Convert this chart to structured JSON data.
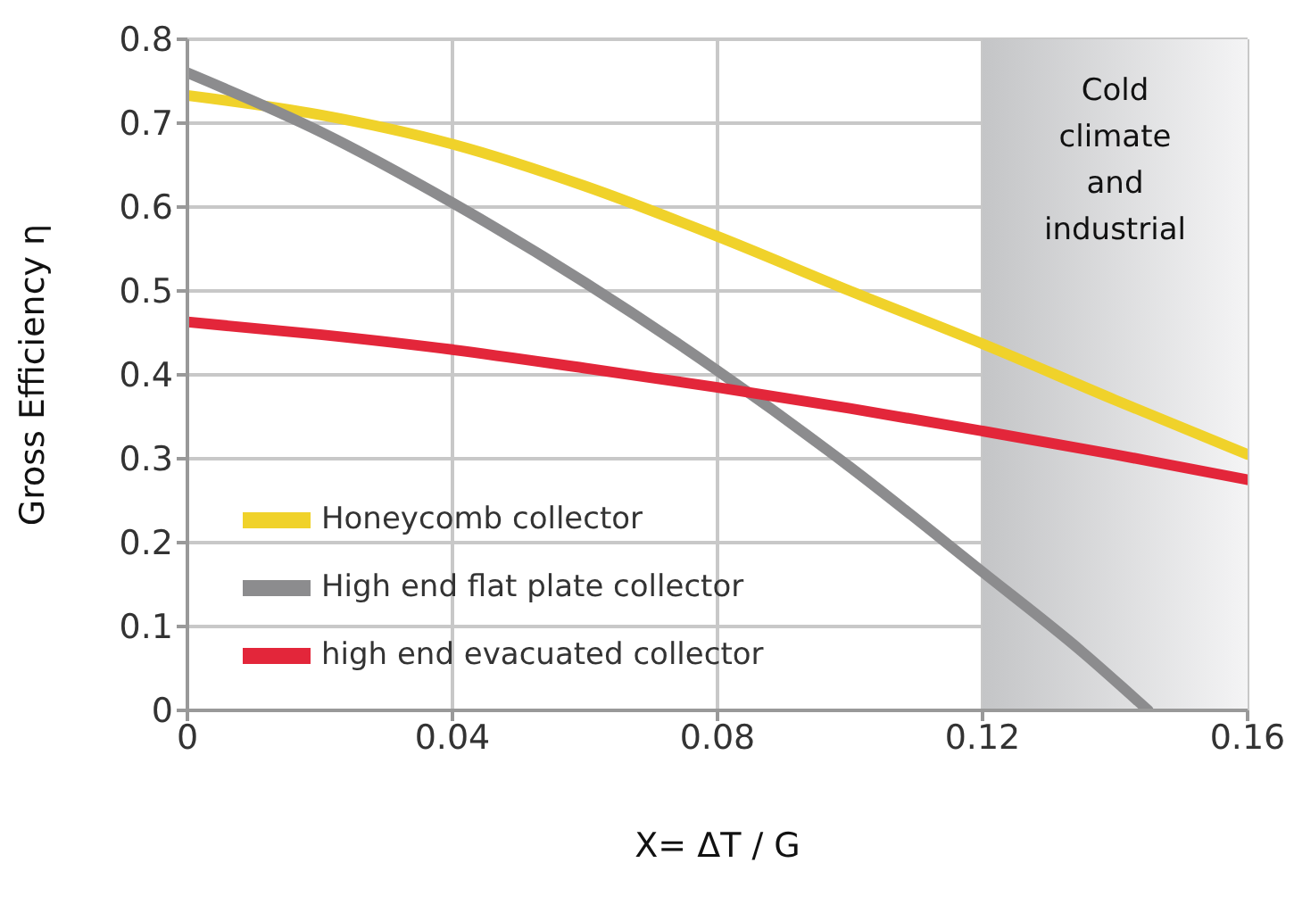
{
  "chart_data": {
    "type": "line",
    "xlabel": "X= ΔT / G",
    "ylabel": "Gross Efficiency η",
    "xlim": [
      0,
      0.16
    ],
    "xticks": [
      0,
      0.04,
      0.08,
      0.12,
      0.16
    ],
    "ylim": [
      0,
      0.8
    ],
    "yticks": [
      0,
      0.1,
      0.2,
      0.3,
      0.4,
      0.5,
      0.6,
      0.7,
      0.8
    ],
    "grid": true,
    "legend": "bottom left",
    "marker": "none",
    "line_style": "solid",
    "bands": [
      {
        "axis": "x",
        "from": 0.12,
        "to": 0.16,
        "label": "Cold climate and industrial",
        "color": "#c4c5c7"
      }
    ],
    "series": [
      {
        "name": "Honeycomb collector",
        "color": "#f0d22a",
        "x": [
          0,
          0.02,
          0.04,
          0.06,
          0.08,
          0.1,
          0.12,
          0.14,
          0.16
        ],
        "values": [
          0.733,
          0.71,
          0.675,
          0.625,
          0.565,
          0.5,
          0.437,
          0.37,
          0.305
        ]
      },
      {
        "name": "High end flat plate collector",
        "color": "#8c8c8e",
        "x": [
          0,
          0.02,
          0.04,
          0.06,
          0.08,
          0.1,
          0.12,
          0.135,
          0.145
        ],
        "values": [
          0.76,
          0.69,
          0.605,
          0.51,
          0.405,
          0.29,
          0.165,
          0.07,
          0
        ]
      },
      {
        "name": "high end evacuated collector",
        "color": "#e3263a",
        "x": [
          0,
          0.02,
          0.04,
          0.06,
          0.08,
          0.1,
          0.12,
          0.14,
          0.16
        ],
        "values": [
          0.463,
          0.448,
          0.43,
          0.408,
          0.385,
          0.36,
          0.333,
          0.305,
          0.275
        ]
      }
    ]
  }
}
